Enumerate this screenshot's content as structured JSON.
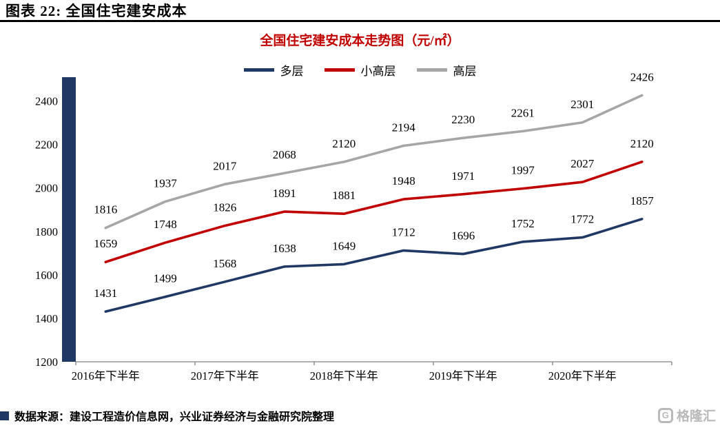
{
  "header": {
    "title": "图表 22: 全国住宅建安成本"
  },
  "chart_data": {
    "type": "line",
    "title": "全国住宅建安成本走势图（元/㎡）",
    "x": {
      "n_points": 10,
      "tick_labels": [
        "2016年下半年",
        "2017年下半年",
        "2018年下半年",
        "2019年下半年",
        "2020年下半年"
      ],
      "tick_indices": [
        0,
        2,
        4,
        6,
        8
      ]
    },
    "series": [
      {
        "name": "多层",
        "color": "#1f3864",
        "values": [
          1431,
          1499,
          1568,
          1638,
          1649,
          1712,
          1696,
          1752,
          1772,
          1857
        ]
      },
      {
        "name": "小高层",
        "color": "#c00000",
        "values": [
          1659,
          1748,
          1826,
          1891,
          1881,
          1948,
          1971,
          1997,
          2027,
          2120
        ]
      },
      {
        "name": "高层",
        "color": "#a6a6a6",
        "values": [
          1816,
          1937,
          2017,
          2068,
          2120,
          2194,
          2230,
          2261,
          2301,
          2426
        ]
      }
    ],
    "y_axis": {
      "min": 1200,
      "max": 2500,
      "tick_step": 200,
      "ticks": [
        1200,
        1400,
        1600,
        1800,
        2000,
        2200,
        2400
      ]
    },
    "grid": false,
    "legend_position": "top",
    "data_labels": true,
    "accent_bar_color": "#1f3864",
    "axis_color": "#7f7f7f"
  },
  "footer": {
    "source": "数据来源：建设工程造价信息网，兴业证券经济与金融研究院整理"
  },
  "watermark": {
    "logo_letter": "G",
    "text": "格隆汇"
  }
}
